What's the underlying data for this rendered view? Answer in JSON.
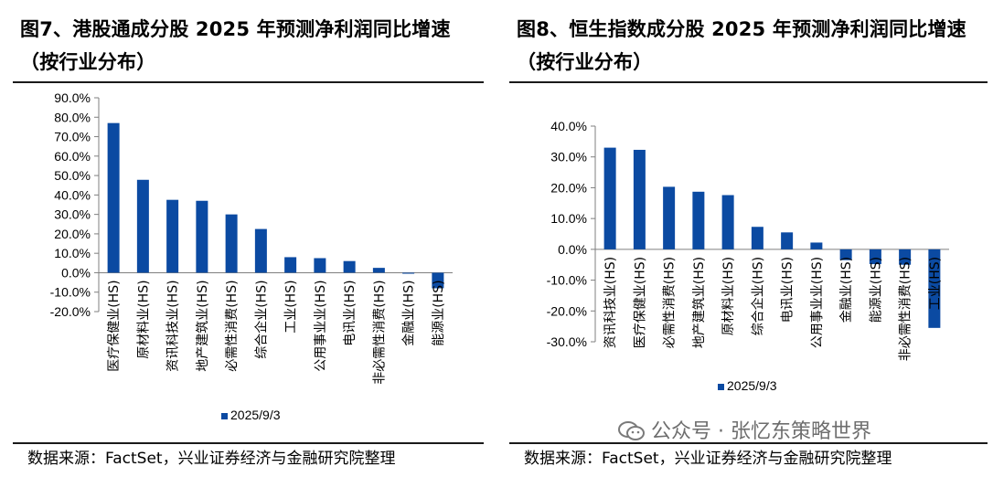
{
  "left": {
    "title": "图7、港股通成分股 2025 年预测净利润同比增速（按行业分布）",
    "source": "数据来源：FactSet，兴业证券经济与金融研究院整理"
  },
  "right": {
    "title": "图8、恒生指数成分股 2025 年预测净利润同比增速（按行业分布）",
    "source": "数据来源：FactSet，兴业证券经济与金融研究院整理"
  },
  "watermark": {
    "text": "公众号 · 张忆东策略世界",
    "icon": "wechat-icon"
  },
  "colors": {
    "bar": "#0b4aa2",
    "axis": "#7f7f7f",
    "text": "#000000"
  },
  "chart_data": [
    {
      "type": "bar",
      "categories": [
        "医疗保健业(HS)",
        "原材料业(HS)",
        "资讯科技业(HS)",
        "地产建筑业(HS)",
        "必需性消费(HS)",
        "综合企业(HS)",
        "工业(HS)",
        "公用事业业(HS)",
        "电讯业(HS)",
        "非必需性消费(HS)",
        "金融业(HS)",
        "能源业(HS)"
      ],
      "series": [
        {
          "name": "2025/9/3",
          "values": [
            77.0,
            47.8,
            37.5,
            37.0,
            30.0,
            22.5,
            8.0,
            7.5,
            6.0,
            2.5,
            -0.5,
            -8.0
          ]
        }
      ],
      "ylim": [
        -20,
        90
      ],
      "yticks": [
        -20,
        -10,
        0,
        10,
        20,
        30,
        40,
        50,
        60,
        70,
        80,
        90
      ],
      "ytick_labels": [
        "-20.0%",
        "-10.0%",
        "0.0%",
        "10.0%",
        "20.0%",
        "30.0%",
        "40.0%",
        "50.0%",
        "60.0%",
        "70.0%",
        "80.0%",
        "90.0%"
      ],
      "legend": "bottom",
      "grid": false
    },
    {
      "type": "bar",
      "categories": [
        "资讯科技业(HS)",
        "医疗保健业(HS)",
        "必需性消费(HS)",
        "地产建筑业(HS)",
        "原材料业(HS)",
        "综合企业(HS)",
        "电讯业(HS)",
        "公用事业业(HS)",
        "金融业(HS)",
        "能源业(HS)",
        "非必需性消费(HS)",
        "工业(HS)"
      ],
      "series": [
        {
          "name": "2025/9/3",
          "values": [
            33.0,
            32.3,
            20.3,
            18.7,
            17.6,
            7.3,
            5.5,
            2.2,
            -3.5,
            -4.8,
            -5.0,
            -25.5
          ]
        }
      ],
      "ylim": [
        -30,
        40
      ],
      "yticks": [
        -30,
        -20,
        -10,
        0,
        10,
        20,
        30,
        40
      ],
      "ytick_labels": [
        "-30.0%",
        "-20.0%",
        "-10.0%",
        "0.0%",
        "10.0%",
        "20.0%",
        "30.0%",
        "40.0%"
      ],
      "legend": "bottom",
      "grid": false
    }
  ]
}
